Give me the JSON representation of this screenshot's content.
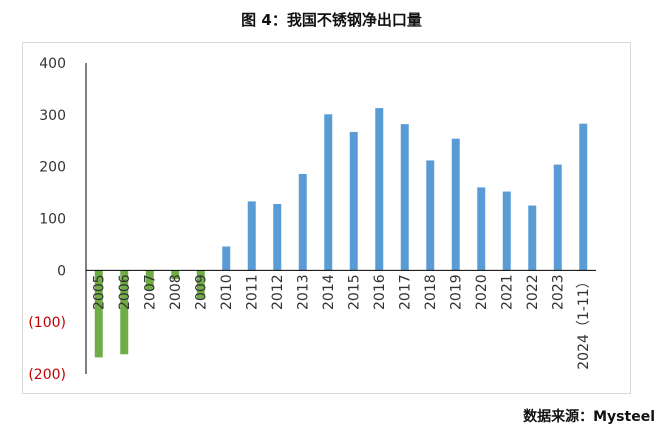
{
  "title": "图 4：我国不锈钢净出口量",
  "source": "数据来源：Mysteel",
  "colors": {
    "positive": "#5B9BD5",
    "negative": "#70AD47",
    "neg_tick": "#C00000",
    "axis": "#000000",
    "tick": "#333333"
  },
  "chart_data": {
    "type": "bar",
    "title": "图 4：我国不锈钢净出口量",
    "xlabel": "",
    "ylabel": "",
    "ylim": [
      -200,
      400
    ],
    "yticks": [
      400,
      300,
      200,
      100,
      0,
      -100,
      -200
    ],
    "ytick_labels": [
      "400",
      "300",
      "200",
      "100",
      "0",
      "(100)",
      "(200)"
    ],
    "categories": [
      "2005",
      "2006",
      "2007",
      "2008",
      "2009",
      "2010",
      "2011",
      "2012",
      "2013",
      "2014",
      "2015",
      "2016",
      "2017",
      "2018",
      "2019",
      "2020",
      "2021",
      "2022",
      "2023",
      "2024（1-11）"
    ],
    "values": [
      -168,
      -162,
      -38,
      -17,
      -55,
      46,
      133,
      128,
      186,
      301,
      267,
      313,
      282,
      212,
      254,
      160,
      152,
      125,
      204,
      283
    ],
    "grid": false,
    "legend": "none"
  }
}
